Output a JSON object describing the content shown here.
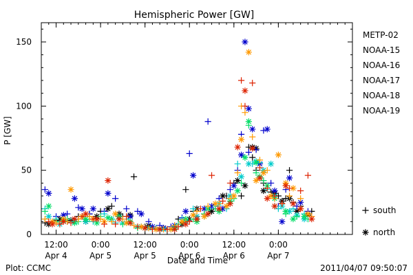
{
  "chart_data": {
    "type": "scatter",
    "title": "Hemispheric Power [GW]",
    "ylabel": "P [GW]",
    "xlabel": "Date and Time",
    "ylim": [
      0,
      165
    ],
    "yticks": [
      0,
      50,
      100,
      150
    ],
    "xlim_hours": [
      0,
      84
    ],
    "xticks": [
      {
        "time": "12:00",
        "date": "Apr 4",
        "hour": 4
      },
      {
        "time": "0:00",
        "date": "Apr 5",
        "hour": 16
      },
      {
        "time": "12:00",
        "date": "Apr 5",
        "hour": 28
      },
      {
        "time": "0:00",
        "date": "Apr 6",
        "hour": 40
      },
      {
        "time": "12:00",
        "date": "Apr 6",
        "hour": 52
      },
      {
        "time": "0:00",
        "date": "Apr 7",
        "hour": 64
      }
    ],
    "legend_position": "right",
    "marker_legend": [
      {
        "symbol": "+",
        "label": "south"
      },
      {
        "symbol": "*",
        "label": "north"
      }
    ],
    "series": [
      {
        "name": "METP-02",
        "color": "#000000",
        "plus": [
          [
            1,
            9
          ],
          [
            4,
            11
          ],
          [
            7,
            10
          ],
          [
            10,
            14
          ],
          [
            13,
            16
          ],
          [
            16,
            18
          ],
          [
            19,
            22
          ],
          [
            22,
            14
          ],
          [
            25,
            45
          ],
          [
            28,
            6
          ],
          [
            31,
            5
          ],
          [
            34,
            4
          ],
          [
            37,
            12
          ],
          [
            39,
            35
          ],
          [
            41,
            18
          ],
          [
            44,
            16
          ],
          [
            47,
            22
          ],
          [
            50,
            30
          ],
          [
            52,
            40
          ],
          [
            54,
            30
          ],
          [
            56,
            68
          ],
          [
            57,
            60
          ],
          [
            58,
            50
          ],
          [
            60,
            40
          ],
          [
            62,
            33
          ],
          [
            64,
            30
          ],
          [
            66,
            28
          ],
          [
            67,
            50
          ],
          [
            68,
            25
          ],
          [
            70,
            22
          ],
          [
            73,
            18
          ]
        ],
        "star": [
          [
            2,
            8
          ],
          [
            5,
            12
          ],
          [
            8,
            11
          ],
          [
            12,
            10
          ],
          [
            15,
            14
          ],
          [
            18,
            20
          ],
          [
            21,
            16
          ],
          [
            24,
            15
          ],
          [
            29,
            7
          ],
          [
            33,
            5
          ],
          [
            38,
            8
          ],
          [
            40,
            12
          ],
          [
            42,
            20
          ],
          [
            46,
            18
          ],
          [
            49,
            30
          ],
          [
            53,
            42
          ],
          [
            55,
            38
          ],
          [
            57,
            68
          ],
          [
            58,
            67
          ],
          [
            60,
            34
          ],
          [
            63,
            32
          ],
          [
            65,
            26
          ],
          [
            67,
            28
          ],
          [
            69,
            18
          ],
          [
            72,
            15
          ]
        ]
      },
      {
        "name": "NOAA-15",
        "color": "#0000cc",
        "plus": [
          [
            1,
            35
          ],
          [
            4,
            14
          ],
          [
            7,
            16
          ],
          [
            10,
            21
          ],
          [
            13,
            16
          ],
          [
            17,
            18
          ],
          [
            20,
            28
          ],
          [
            23,
            20
          ],
          [
            26,
            18
          ],
          [
            29,
            10
          ],
          [
            32,
            7
          ],
          [
            35,
            6
          ],
          [
            38,
            13
          ],
          [
            40,
            63
          ],
          [
            42,
            14
          ],
          [
            45,
            88
          ],
          [
            48,
            28
          ],
          [
            51,
            35
          ],
          [
            53,
            50
          ],
          [
            54,
            78
          ],
          [
            56,
            64
          ],
          [
            58,
            66
          ],
          [
            60,
            81
          ],
          [
            62,
            40
          ],
          [
            64,
            22
          ],
          [
            66,
            35
          ],
          [
            69,
            22
          ],
          [
            72,
            18
          ]
        ],
        "star": [
          [
            2,
            32
          ],
          [
            6,
            15
          ],
          [
            9,
            28
          ],
          [
            11,
            20
          ],
          [
            14,
            20
          ],
          [
            18,
            32
          ],
          [
            21,
            14
          ],
          [
            24,
            14
          ],
          [
            27,
            16
          ],
          [
            30,
            6
          ],
          [
            33,
            5
          ],
          [
            36,
            7
          ],
          [
            39,
            18
          ],
          [
            41,
            46
          ],
          [
            44,
            20
          ],
          [
            46,
            22
          ],
          [
            49,
            20
          ],
          [
            52,
            38
          ],
          [
            54,
            62
          ],
          [
            55,
            150
          ],
          [
            56,
            98
          ],
          [
            57,
            82
          ],
          [
            59,
            55
          ],
          [
            61,
            82
          ],
          [
            63,
            34
          ],
          [
            65,
            10
          ],
          [
            67,
            44
          ],
          [
            70,
            25
          ]
        ]
      },
      {
        "name": "NOAA-16",
        "color": "#00cccc",
        "plus": [
          [
            1,
            20
          ],
          [
            4,
            12
          ],
          [
            8,
            10
          ],
          [
            11,
            14
          ],
          [
            14,
            10
          ],
          [
            17,
            16
          ],
          [
            20,
            9
          ],
          [
            23,
            12
          ],
          [
            27,
            6
          ],
          [
            31,
            5
          ],
          [
            35,
            4
          ],
          [
            38,
            12
          ],
          [
            41,
            20
          ],
          [
            44,
            14
          ],
          [
            47,
            22
          ],
          [
            50,
            20
          ],
          [
            53,
            55
          ],
          [
            55,
            60
          ],
          [
            57,
            55
          ],
          [
            59,
            56
          ],
          [
            61,
            35
          ],
          [
            64,
            20
          ],
          [
            66,
            18
          ],
          [
            68,
            20
          ],
          [
            71,
            16
          ]
        ],
        "star": [
          [
            2,
            14
          ],
          [
            5,
            8
          ],
          [
            9,
            10
          ],
          [
            12,
            10
          ],
          [
            15,
            12
          ],
          [
            19,
            12
          ],
          [
            22,
            9
          ],
          [
            26,
            6
          ],
          [
            29,
            5
          ],
          [
            33,
            4
          ],
          [
            36,
            5
          ],
          [
            39,
            10
          ],
          [
            42,
            14
          ],
          [
            45,
            16
          ],
          [
            48,
            24
          ],
          [
            51,
            30
          ],
          [
            54,
            45
          ],
          [
            56,
            55
          ],
          [
            58,
            57
          ],
          [
            60,
            50
          ],
          [
            62,
            55
          ],
          [
            63,
            30
          ],
          [
            65,
            22
          ],
          [
            67,
            18
          ],
          [
            69,
            15
          ],
          [
            71,
            12
          ]
        ]
      },
      {
        "name": "NOAA-17",
        "color": "#00dd66",
        "plus": [
          [
            1,
            18
          ],
          [
            4,
            10
          ],
          [
            7,
            12
          ],
          [
            10,
            10
          ],
          [
            13,
            12
          ],
          [
            16,
            14
          ],
          [
            19,
            12
          ],
          [
            22,
            8
          ],
          [
            26,
            5
          ],
          [
            30,
            4
          ],
          [
            34,
            4
          ],
          [
            37,
            8
          ],
          [
            41,
            12
          ],
          [
            44,
            16
          ],
          [
            47,
            20
          ],
          [
            50,
            22
          ],
          [
            52,
            28
          ],
          [
            54,
            40
          ],
          [
            56,
            85
          ],
          [
            58,
            48
          ],
          [
            60,
            42
          ],
          [
            63,
            22
          ],
          [
            66,
            16
          ],
          [
            69,
            14
          ],
          [
            72,
            12
          ]
        ],
        "star": [
          [
            2,
            22
          ],
          [
            6,
            11
          ],
          [
            9,
            9
          ],
          [
            12,
            12
          ],
          [
            15,
            9
          ],
          [
            18,
            13
          ],
          [
            21,
            14
          ],
          [
            24,
            10
          ],
          [
            28,
            5
          ],
          [
            32,
            4
          ],
          [
            36,
            5
          ],
          [
            39,
            12
          ],
          [
            42,
            10
          ],
          [
            45,
            20
          ],
          [
            48,
            18
          ],
          [
            51,
            26
          ],
          [
            53,
            34
          ],
          [
            55,
            60
          ],
          [
            56,
            88
          ],
          [
            58,
            56
          ],
          [
            59,
            45
          ],
          [
            61,
            38
          ],
          [
            63,
            28
          ],
          [
            66,
            18
          ],
          [
            68,
            12
          ],
          [
            71,
            14
          ]
        ]
      },
      {
        "name": "NOAA-18",
        "color": "#ff9900",
        "plus": [
          [
            1,
            12
          ],
          [
            4,
            9
          ],
          [
            7,
            10
          ],
          [
            10,
            12
          ],
          [
            13,
            14
          ],
          [
            16,
            12
          ],
          [
            19,
            10
          ],
          [
            22,
            12
          ],
          [
            25,
            7
          ],
          [
            29,
            5
          ],
          [
            33,
            4
          ],
          [
            36,
            7
          ],
          [
            39,
            10
          ],
          [
            42,
            18
          ],
          [
            45,
            22
          ],
          [
            48,
            24
          ],
          [
            51,
            28
          ],
          [
            53,
            48
          ],
          [
            54,
            100
          ],
          [
            55,
            95
          ],
          [
            57,
            76
          ],
          [
            59,
            58
          ],
          [
            61,
            50
          ],
          [
            63,
            28
          ],
          [
            65,
            24
          ],
          [
            67,
            30
          ],
          [
            70,
            28
          ],
          [
            73,
            14
          ]
        ],
        "star": [
          [
            3,
            10
          ],
          [
            6,
            12
          ],
          [
            8,
            35
          ],
          [
            11,
            14
          ],
          [
            14,
            12
          ],
          [
            17,
            10
          ],
          [
            20,
            16
          ],
          [
            23,
            9
          ],
          [
            27,
            6
          ],
          [
            31,
            4
          ],
          [
            35,
            4
          ],
          [
            38,
            10
          ],
          [
            41,
            15
          ],
          [
            44,
            14
          ],
          [
            47,
            24
          ],
          [
            50,
            22
          ],
          [
            52,
            30
          ],
          [
            54,
            74
          ],
          [
            56,
            142
          ],
          [
            58,
            42
          ],
          [
            60,
            48
          ],
          [
            62,
            30
          ],
          [
            64,
            62
          ],
          [
            66,
            40
          ],
          [
            68,
            36
          ],
          [
            70,
            20
          ],
          [
            72,
            16
          ]
        ]
      },
      {
        "name": "NOAA-19",
        "color": "#dd2200",
        "plus": [
          [
            2,
            10
          ],
          [
            5,
            8
          ],
          [
            8,
            9
          ],
          [
            11,
            14
          ],
          [
            14,
            12
          ],
          [
            17,
            8
          ],
          [
            20,
            8
          ],
          [
            23,
            14
          ],
          [
            26,
            6
          ],
          [
            30,
            4
          ],
          [
            34,
            4
          ],
          [
            37,
            6
          ],
          [
            40,
            10
          ],
          [
            43,
            20
          ],
          [
            46,
            46
          ],
          [
            49,
            26
          ],
          [
            51,
            40
          ],
          [
            54,
            120
          ],
          [
            55,
            100
          ],
          [
            57,
            118
          ],
          [
            59,
            52
          ],
          [
            61,
            36
          ],
          [
            63,
            30
          ],
          [
            65,
            24
          ],
          [
            67,
            36
          ],
          [
            70,
            34
          ],
          [
            72,
            46
          ]
        ],
        "star": [
          [
            3,
            8
          ],
          [
            6,
            10
          ],
          [
            9,
            12
          ],
          [
            12,
            16
          ],
          [
            15,
            12
          ],
          [
            18,
            42
          ],
          [
            21,
            12
          ],
          [
            24,
            9
          ],
          [
            28,
            5
          ],
          [
            32,
            4
          ],
          [
            36,
            4
          ],
          [
            39,
            8
          ],
          [
            42,
            12
          ],
          [
            45,
            16
          ],
          [
            48,
            20
          ],
          [
            51,
            24
          ],
          [
            53,
            68
          ],
          [
            55,
            112
          ],
          [
            57,
            67
          ],
          [
            59,
            44
          ],
          [
            61,
            28
          ],
          [
            63,
            22
          ],
          [
            66,
            38
          ],
          [
            68,
            24
          ],
          [
            70,
            20
          ],
          [
            73,
            12
          ]
        ]
      }
    ]
  },
  "footer": {
    "plot_credit": "Plot: CCMC",
    "timestamp": "2011/04/07 09:50:07"
  }
}
